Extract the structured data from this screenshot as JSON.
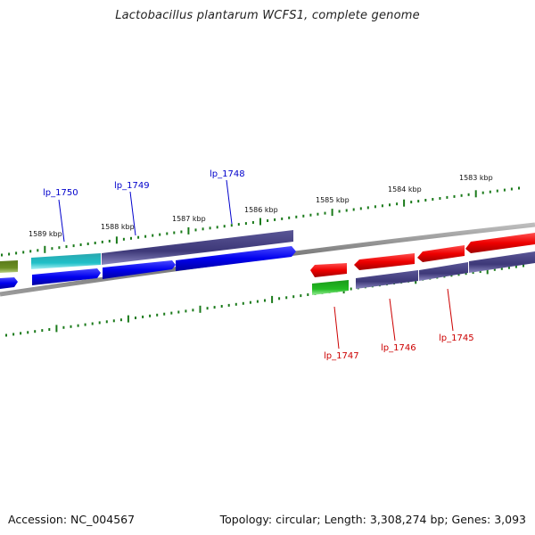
{
  "header": {
    "title": "Lactobacillus plantarum WCFS1, complete genome"
  },
  "footer": {
    "accession": "Accession: NC_004567",
    "summary": "Topology: circular; Length: 3,308,274 bp; Genes: 3,093"
  },
  "scale_labels": [
    "1589 kbp",
    "1588 kbp",
    "1587 kbp",
    "1586 kbp",
    "1585 kbp",
    "1584 kbp",
    "1583 kbp"
  ],
  "gene_labels": [
    {
      "text": "lp_1750",
      "color": "#0000cc"
    },
    {
      "text": "lp_1749",
      "color": "#0000cc"
    },
    {
      "text": "lp_1748",
      "color": "#0000cc"
    },
    {
      "text": "lp_1747",
      "color": "#cc0000"
    },
    {
      "text": "lp_1746",
      "color": "#cc0000"
    },
    {
      "text": "lp_1745",
      "color": "#cc0000"
    }
  ],
  "colors": {
    "tick": "#1a7a1a",
    "backbone": "#808080",
    "forward_gene": "#0000ee",
    "reverse_gene": "#ee0000",
    "gene_product": "#3d3878",
    "rrna_teal": "#20c0c8",
    "olive": "#6b8e23",
    "green_gene": "#22bb22"
  }
}
